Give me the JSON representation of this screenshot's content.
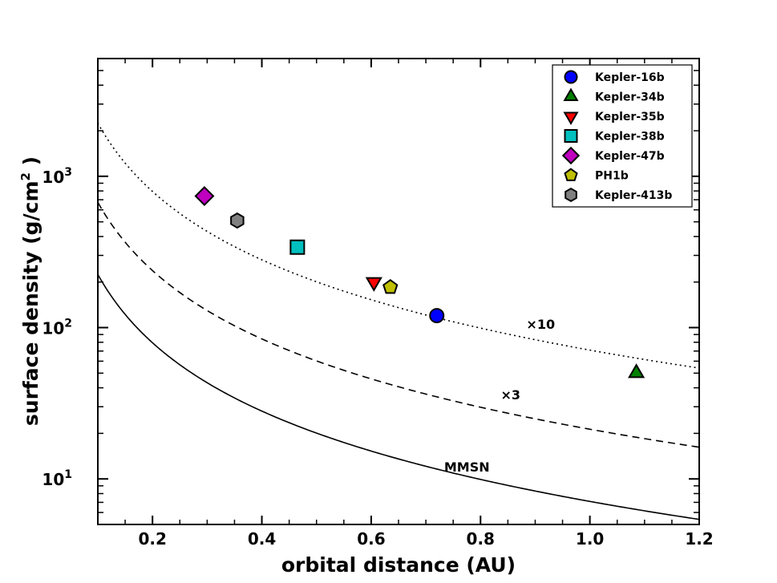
{
  "chart_data": {
    "type": "scatter",
    "title": "",
    "xlabel": "orbital distance (AU)",
    "ylabel_main": "surface density (g/cm",
    "ylabel_sup": "2",
    "ylabel_end": " )",
    "xlim": [
      0.1,
      1.2
    ],
    "ylim": [
      5,
      6000
    ],
    "yscale": "log",
    "x_ticks": [
      {
        "value": 0.2,
        "label": "0.2"
      },
      {
        "value": 0.4,
        "label": "0.4"
      },
      {
        "value": 0.6,
        "label": "0.6"
      },
      {
        "value": 0.8,
        "label": "0.8"
      },
      {
        "value": 1.0,
        "label": "1.0"
      },
      {
        "value": 1.2,
        "label": "1.2"
      }
    ],
    "y_ticks": [
      {
        "value": 10,
        "base": "10",
        "exp": "1"
      },
      {
        "value": 100,
        "base": "10",
        "exp": "2"
      },
      {
        "value": 1000,
        "base": "10",
        "exp": "3"
      }
    ],
    "curves": [
      {
        "name": "MMSN",
        "label": "MMSN",
        "factor": 1,
        "style": "solid",
        "label_x": 0.775,
        "label_y": 11.2
      },
      {
        "name": "x3",
        "label": "×3",
        "factor": 3,
        "style": "dashed",
        "label_x": 0.855,
        "label_y": 33.5
      },
      {
        "name": "x10",
        "label": "×10",
        "factor": 10,
        "style": "dotted",
        "label_x": 0.91,
        "label_y": 98
      }
    ],
    "mmsn_formula": {
      "sigma_1au": 7.1,
      "power": -1.5
    },
    "series": [
      {
        "name": "Kepler-16b",
        "x": 0.72,
        "y": 120,
        "marker": "circle",
        "color": "#0000ff"
      },
      {
        "name": "Kepler-34b",
        "x": 1.085,
        "y": 50,
        "marker": "triangle-up",
        "color": "#008000"
      },
      {
        "name": "Kepler-35b",
        "x": 0.605,
        "y": 200,
        "marker": "triangle-down",
        "color": "#ff0000"
      },
      {
        "name": "Kepler-38b",
        "x": 0.465,
        "y": 340,
        "marker": "square",
        "color": "#00bfbf"
      },
      {
        "name": "Kepler-47b",
        "x": 0.295,
        "y": 740,
        "marker": "diamond",
        "color": "#bf00bf"
      },
      {
        "name": "PH1b",
        "x": 0.635,
        "y": 185,
        "marker": "pentagon",
        "color": "#bfbf00"
      },
      {
        "name": "Kepler-413b",
        "x": 0.355,
        "y": 510,
        "marker": "hexagon",
        "color": "#808080"
      }
    ],
    "legend_position": "top-right",
    "grid": false
  }
}
